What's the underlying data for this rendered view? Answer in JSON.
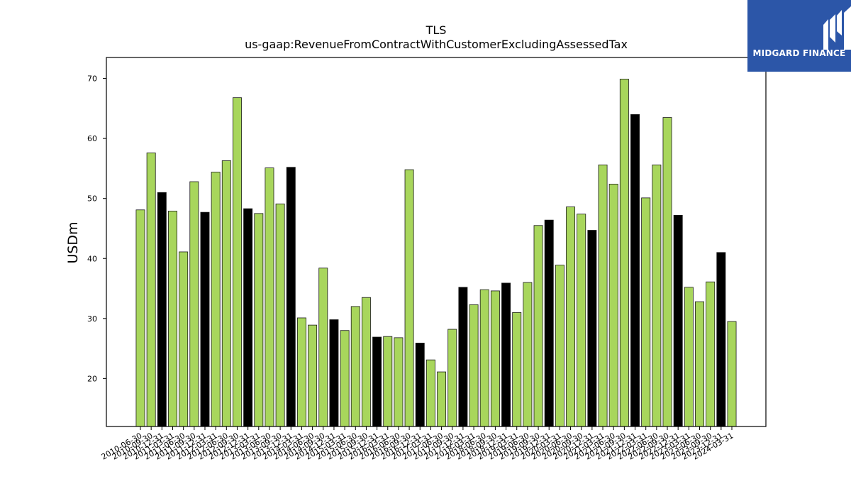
{
  "chart_data": {
    "type": "bar",
    "title": "TLS",
    "subtitle": "us-gaap:RevenueFromContractWithCustomerExcludingAssessedTax",
    "ylabel": "USDm",
    "xlabel": "",
    "ylim": [
      12,
      73.5
    ],
    "yticks": [
      20,
      30,
      40,
      50,
      60,
      70
    ],
    "grid": false,
    "colors": {
      "green": "#a8d65c",
      "black": "#000000",
      "edge": "#1a1a1a"
    },
    "categories": [
      "2010-06-30",
      "2010-09-30",
      "2010-12-31",
      "2011-03-31",
      "2011-06-30",
      "2011-09-30",
      "2011-12-31",
      "2012-03-31",
      "2012-06-30",
      "2012-09-30",
      "2012-12-31",
      "2013-03-31",
      "2013-06-30",
      "2013-09-30",
      "2013-12-31",
      "2014-03-31",
      "2014-06-30",
      "2014-09-30",
      "2014-12-31",
      "2015-03-31",
      "2015-06-30",
      "2015-09-30",
      "2015-12-31",
      "2016-03-31",
      "2016-06-30",
      "2016-09-30",
      "2016-12-31",
      "2017-03-31",
      "2017-06-30",
      "2017-09-30",
      "2017-12-31",
      "2018-03-31",
      "2018-06-30",
      "2018-09-30",
      "2018-12-31",
      "2019-03-31",
      "2019-06-30",
      "2019-09-30",
      "2019-12-31",
      "2020-03-31",
      "2020-06-30",
      "2020-09-30",
      "2020-12-31",
      "2021-03-31",
      "2021-06-30",
      "2021-09-30",
      "2021-12-31",
      "2022-03-31",
      "2022-06-30",
      "2022-09-30",
      "2022-12-31",
      "2023-03-31",
      "2023-06-30",
      "2023-09-30",
      "2023-12-31",
      "2024-03-31"
    ],
    "values": [
      48.1,
      57.6,
      51.0,
      47.9,
      41.1,
      52.8,
      47.7,
      54.4,
      56.3,
      66.8,
      48.3,
      47.5,
      55.1,
      49.1,
      55.2,
      30.1,
      28.9,
      38.4,
      29.8,
      28.0,
      32.0,
      33.5,
      26.9,
      27.0,
      26.8,
      54.8,
      25.9,
      23.1,
      21.1,
      28.2,
      35.2,
      32.3,
      34.8,
      34.6,
      35.9,
      31.0,
      36.0,
      45.5,
      46.4,
      38.9,
      48.6,
      47.4,
      44.7,
      55.6,
      52.4,
      69.9,
      64.0,
      50.1,
      55.6,
      63.5,
      47.2,
      35.2,
      32.8,
      36.1,
      41.0,
      29.5
    ],
    "bar_colors": [
      "green",
      "green",
      "black",
      "green",
      "green",
      "green",
      "black",
      "green",
      "green",
      "green",
      "black",
      "green",
      "green",
      "green",
      "black",
      "green",
      "green",
      "green",
      "black",
      "green",
      "green",
      "green",
      "black",
      "green",
      "green",
      "green",
      "black",
      "green",
      "green",
      "green",
      "black",
      "green",
      "green",
      "green",
      "black",
      "green",
      "green",
      "green",
      "black",
      "green",
      "green",
      "green",
      "black",
      "green",
      "green",
      "green",
      "black",
      "green",
      "green",
      "green",
      "black",
      "green",
      "green",
      "green",
      "black",
      "green"
    ]
  },
  "logo": {
    "text": "MIDGARD FINANCE",
    "icon": "midgard-m-logo-icon",
    "background": "#2c56a8"
  }
}
